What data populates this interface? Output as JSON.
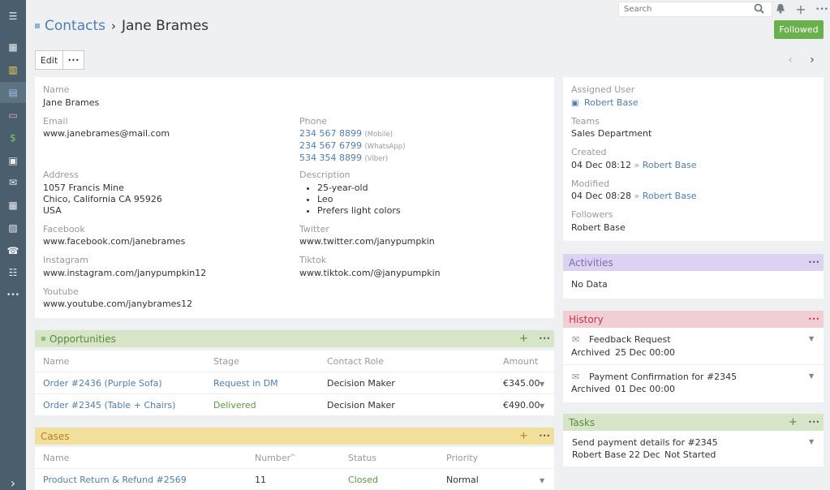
{
  "sidebar": {
    "items": [
      {
        "icon": "hamburger-icon",
        "glyph": "☰"
      },
      {
        "icon": "dashboard-icon",
        "glyph": "▦"
      },
      {
        "icon": "building-icon",
        "glyph": "▥"
      },
      {
        "icon": "contacts-icon",
        "glyph": "▤"
      },
      {
        "icon": "contact-card-icon",
        "glyph": "▭"
      },
      {
        "icon": "dollar-icon",
        "glyph": "$"
      },
      {
        "icon": "briefcase-icon",
        "glyph": "▣"
      },
      {
        "icon": "envelope-icon",
        "glyph": "✉"
      },
      {
        "icon": "calendar-icon",
        "glyph": "▦"
      },
      {
        "icon": "calendar-check-icon",
        "glyph": "▨"
      },
      {
        "icon": "phone-icon",
        "glyph": "☎"
      },
      {
        "icon": "tasks-list-icon",
        "glyph": "☷"
      },
      {
        "icon": "more-icon",
        "glyph": "•••"
      },
      {
        "icon": "expand-icon",
        "glyph": "›"
      }
    ]
  },
  "search": {
    "placeholder": "Search"
  },
  "breadcrumb": {
    "parent": "Contacts",
    "separator": "›",
    "current": "Jane Brames"
  },
  "follow_label": "Followed",
  "toolbar": {
    "edit_label": "Edit",
    "more_label": "•••"
  },
  "contact": {
    "name_label": "Name",
    "name": "Jane Brames",
    "email_label": "Email",
    "email": "www.janebrames@mail.com",
    "phone_label": "Phone",
    "phones": [
      {
        "number": "234 567 8899",
        "type": "(Mobile)"
      },
      {
        "number": "234 567 6799",
        "type": "(WhatsApp)"
      },
      {
        "number": "534 354 8899",
        "type": "(Viber)"
      }
    ],
    "address_label": "Address",
    "address": [
      "1057 Francis Mine",
      "Chico, California CA 95926",
      "USA"
    ],
    "description_label": "Description",
    "description": [
      "25-year-old",
      "Leo",
      "Prefers light colors"
    ],
    "facebook_label": "Facebook",
    "facebook": "www.facebook.com/janebrames",
    "twitter_label": "Twitter",
    "twitter": "www.twitter.com/janypumpkin",
    "instagram_label": "Instagram",
    "instagram": "www.instagram.com/janypumpkin12",
    "tiktok_label": "Tiktok",
    "tiktok": "www.tiktok.com/@janypumpkin",
    "youtube_label": "Youtube",
    "youtube": "www.youtube.com/janybrames12"
  },
  "opportunities": {
    "title": "Opportunities",
    "headers": [
      "Name",
      "Stage",
      "Contact Role",
      "Amount"
    ],
    "rows": [
      {
        "name": "Order #2436 (Purple Sofa)",
        "stage": "Request in DM",
        "role": "Decision Maker",
        "amount": "€345.00"
      },
      {
        "name": "Order #2345 (Table + Chairs)",
        "stage": "Delivered",
        "role": "Decision Maker",
        "amount": "€490.00"
      }
    ]
  },
  "cases": {
    "title": "Cases",
    "headers": [
      "Name",
      "Number",
      "Status",
      "Priority"
    ],
    "sort_indicator": "^",
    "rows": [
      {
        "name": "Product Return & Refund #2569",
        "number": "11",
        "status": "Closed",
        "priority": "Normal"
      }
    ]
  },
  "side": {
    "assigned_label": "Assigned User",
    "assigned": "Robert Base",
    "teams_label": "Teams",
    "teams": "Sales Department",
    "created_label": "Created",
    "created_date": "04 Dec 08:12",
    "created_by": "Robert Base",
    "modified_label": "Modified",
    "modified_date": "04 Dec 08:28",
    "modified_by": "Robert Base",
    "followers_label": "Followers",
    "followers": "Robert Base",
    "by_sep": "»"
  },
  "activities": {
    "title": "Activities",
    "empty": "No Data"
  },
  "history": {
    "title": "History",
    "items": [
      {
        "title": "Feedback Request",
        "status": "Archived",
        "date": "25 Dec 00:00"
      },
      {
        "title": "Payment Confirmation for #2345",
        "status": "Archived",
        "date": "01 Dec 00:00"
      }
    ]
  },
  "tasks": {
    "title": "Tasks",
    "items": [
      {
        "title": "Send payment details for #2345",
        "user": "Robert Base",
        "date": "22 Dec",
        "status": "Not Started"
      }
    ]
  },
  "colors": {
    "link": "#4f7db5",
    "sidebar": "#4a5e6d",
    "followed": "#6ab04c",
    "opportunities_header": "#d6e5c7",
    "cases_header": "#f2df9c",
    "activities_header": "#ddd2f2",
    "history_header": "#f0ced3",
    "tasks_header": "#d6e5c7",
    "delivered": "#5a9b3b",
    "closed": "#5a9b3b"
  }
}
